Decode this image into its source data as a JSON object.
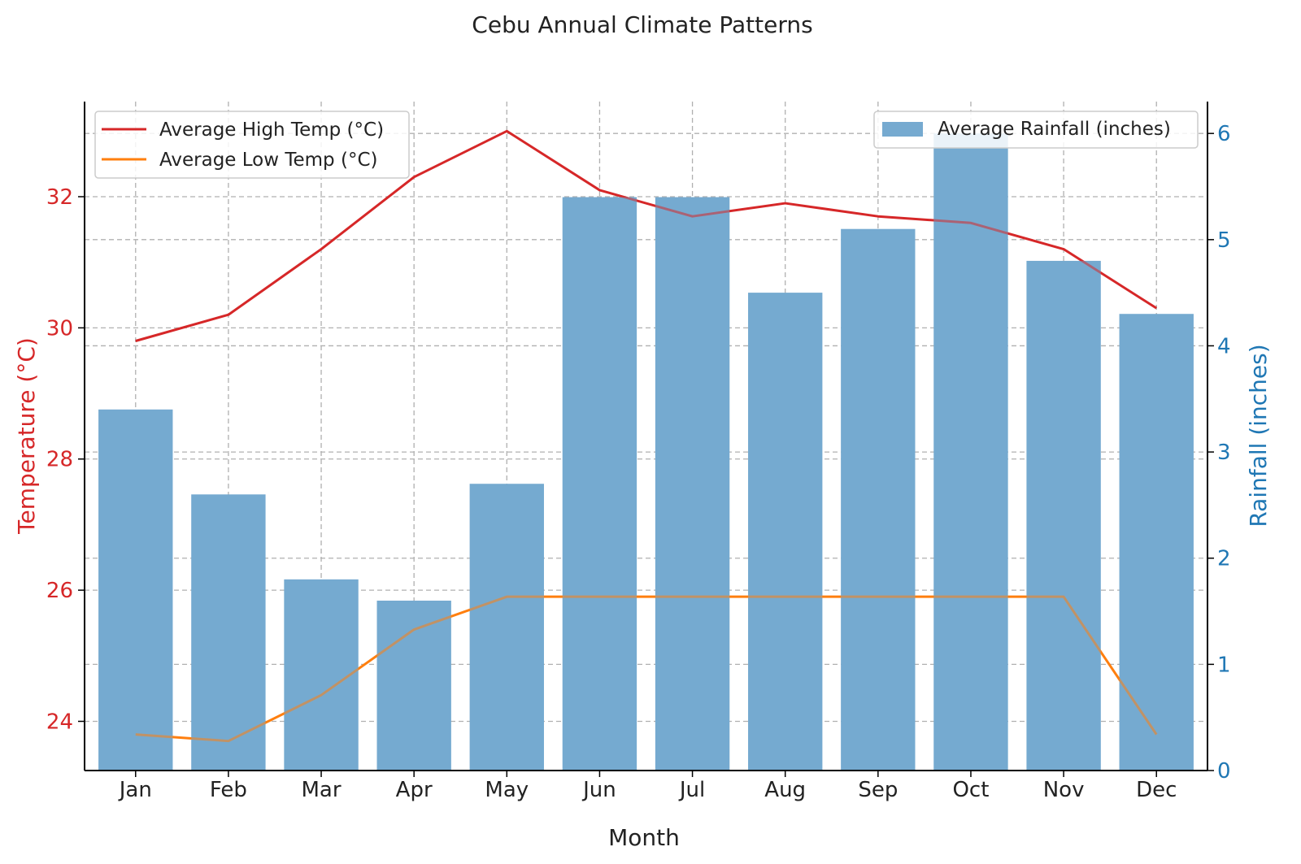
{
  "chart_data": {
    "type": "bar",
    "title": "Cebu Annual Climate Patterns",
    "xlabel": "Month",
    "ylabel_left": "Temperature (°C)",
    "ylabel_right": "Rainfall (inches)",
    "categories": [
      "Jan",
      "Feb",
      "Mar",
      "Apr",
      "May",
      "Jun",
      "Jul",
      "Aug",
      "Sep",
      "Oct",
      "Nov",
      "Dec"
    ],
    "series": [
      {
        "name": "Average Rainfall (inches)",
        "type": "bar",
        "axis": "right",
        "color": "#76aad0",
        "values": [
          3.4,
          2.6,
          1.8,
          1.6,
          2.7,
          5.4,
          5.4,
          4.5,
          5.1,
          6.0,
          4.8,
          4.3
        ]
      },
      {
        "name": "Average High Temp (°C)",
        "type": "line",
        "axis": "left",
        "color": "#d62728",
        "values": [
          29.8,
          30.2,
          31.2,
          32.3,
          33.0,
          32.1,
          31.7,
          31.9,
          31.7,
          31.6,
          31.2,
          30.3
        ]
      },
      {
        "name": "Average Low Temp (°C)",
        "type": "line",
        "axis": "left",
        "color": "#ff7f0e",
        "values": [
          23.8,
          23.7,
          24.4,
          25.4,
          25.9,
          25.9,
          25.9,
          25.9,
          25.9,
          25.9,
          25.9,
          23.8
        ]
      }
    ],
    "ylim_left": [
      23.25,
      33.45
    ],
    "yticks_left": [
      24,
      26,
      28,
      30,
      32
    ],
    "ylim_right": [
      0,
      6.3
    ],
    "yticks_right": [
      0,
      1,
      2,
      3,
      4,
      5,
      6
    ],
    "left_axis_color": "#d62728",
    "right_axis_color": "#1f77b4",
    "grid": true,
    "legend_lines_position": "upper left",
    "legend_bars_position": "upper right"
  }
}
